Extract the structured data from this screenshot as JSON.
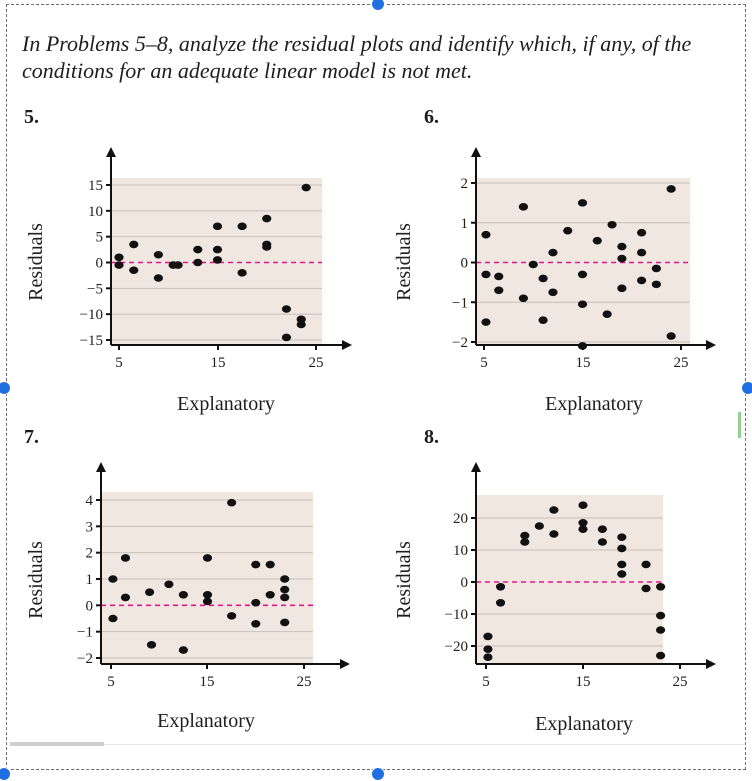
{
  "instruction": "In Problems 5–8, analyze the residual plots and identify which, if any, of the conditions for an adequate linear model is not met.",
  "chart_data": [
    {
      "type": "scatter",
      "label": "5.",
      "xlabel": "Explanatory",
      "ylabel": "Residuals",
      "xlim": [
        5,
        25
      ],
      "ylim": [
        -15,
        15
      ],
      "xticks": [
        "5",
        "15",
        "25"
      ],
      "yticks": [
        "15",
        "10",
        "5",
        "0",
        "−5",
        "−10",
        "−15"
      ],
      "ytick_values": [
        15,
        10,
        5,
        0,
        -5,
        -10,
        -15
      ],
      "zero_line": true,
      "grid": true,
      "points": [
        [
          5,
          1
        ],
        [
          5,
          -0.5
        ],
        [
          6.5,
          3.5
        ],
        [
          6.5,
          -1.5
        ],
        [
          9,
          1.5
        ],
        [
          9,
          -3
        ],
        [
          10.5,
          -0.5
        ],
        [
          11,
          -0.5
        ],
        [
          13,
          2.5
        ],
        [
          13,
          0
        ],
        [
          15,
          7
        ],
        [
          15,
          2.5
        ],
        [
          15,
          0.5
        ],
        [
          17.5,
          7
        ],
        [
          17.5,
          -2
        ],
        [
          20,
          8.5
        ],
        [
          20,
          3.5
        ],
        [
          20,
          3
        ],
        [
          22,
          -9
        ],
        [
          22,
          -14.5
        ],
        [
          23.5,
          -11
        ],
        [
          23.5,
          -12
        ],
        [
          24,
          14.5
        ]
      ]
    },
    {
      "type": "scatter",
      "label": "6.",
      "xlabel": "Explanatory",
      "ylabel": "Residuals",
      "xlim": [
        5,
        25
      ],
      "ylim": [
        -2,
        2
      ],
      "xticks": [
        "5",
        "15",
        "25"
      ],
      "yticks": [
        "2",
        "1",
        "0",
        "−1",
        "−2"
      ],
      "ytick_values": [
        2,
        1,
        0,
        -1,
        -2
      ],
      "zero_line": true,
      "grid": true,
      "points": [
        [
          5.2,
          0.7
        ],
        [
          5.2,
          -0.3
        ],
        [
          5.2,
          -1.5
        ],
        [
          6.5,
          -0.35
        ],
        [
          6.5,
          -0.7
        ],
        [
          9,
          1.4
        ],
        [
          9,
          -0.9
        ],
        [
          10,
          -0.05
        ],
        [
          11,
          -0.4
        ],
        [
          11,
          -1.45
        ],
        [
          12,
          0.25
        ],
        [
          12,
          -0.75
        ],
        [
          13.5,
          0.8
        ],
        [
          15,
          1.5
        ],
        [
          15,
          -0.3
        ],
        [
          15,
          -1.05
        ],
        [
          15,
          -2.1
        ],
        [
          16.5,
          0.55
        ],
        [
          17.5,
          -1.3
        ],
        [
          18,
          0.95
        ],
        [
          19,
          0.4
        ],
        [
          19,
          0.1
        ],
        [
          19,
          -0.65
        ],
        [
          21,
          -0.45
        ],
        [
          21,
          0.75
        ],
        [
          21,
          0.25
        ],
        [
          22.5,
          -0.15
        ],
        [
          22.5,
          -0.55
        ],
        [
          24,
          1.85
        ],
        [
          24,
          -1.85
        ]
      ]
    },
    {
      "type": "scatter",
      "label": "7.",
      "xlabel": "Explanatory",
      "ylabel": "Residuals",
      "xlim": [
        5,
        25
      ],
      "ylim": [
        -2,
        4
      ],
      "xticks": [
        "5",
        "15",
        "25"
      ],
      "yticks": [
        "4",
        "3",
        "2",
        "1",
        "0",
        "−1",
        "−2"
      ],
      "ytick_values": [
        4,
        3,
        2,
        1,
        0,
        -1,
        -2
      ],
      "zero_line": true,
      "grid": true,
      "points": [
        [
          5.2,
          1
        ],
        [
          5.2,
          -0.5
        ],
        [
          6.5,
          1.8
        ],
        [
          6.5,
          0.3
        ],
        [
          9,
          0.5
        ],
        [
          9.2,
          -1.5
        ],
        [
          11,
          0.8
        ],
        [
          12.5,
          0.4
        ],
        [
          12.5,
          -1.7
        ],
        [
          15,
          1.8
        ],
        [
          15,
          0.4
        ],
        [
          15,
          0.15
        ],
        [
          17.5,
          3.9
        ],
        [
          17.5,
          -0.4
        ],
        [
          20,
          1.55
        ],
        [
          20,
          0.1
        ],
        [
          20,
          -0.7
        ],
        [
          21.5,
          1.55
        ],
        [
          21.5,
          0.4
        ],
        [
          23,
          1
        ],
        [
          23,
          0.6
        ],
        [
          23,
          0.3
        ],
        [
          23,
          -0.65
        ]
      ]
    },
    {
      "type": "scatter",
      "label": "8.",
      "xlabel": "Explanatory",
      "ylabel": "Residuals",
      "xlim": [
        5,
        25
      ],
      "ylim": [
        -25,
        25
      ],
      "xticks": [
        "5",
        "15",
        "25"
      ],
      "yticks": [
        "20",
        "10",
        "0",
        "−10",
        "−20"
      ],
      "ytick_values": [
        20,
        10,
        0,
        -10,
        -20
      ],
      "zero_line": true,
      "grid": true,
      "points": [
        [
          5.2,
          -17
        ],
        [
          5.2,
          -21
        ],
        [
          5.2,
          -23.5
        ],
        [
          6.5,
          -1.5
        ],
        [
          6.5,
          -6.5
        ],
        [
          9,
          14.5
        ],
        [
          9,
          12.5
        ],
        [
          10.5,
          17.5
        ],
        [
          12,
          22.5
        ],
        [
          12,
          15
        ],
        [
          15,
          24
        ],
        [
          15,
          18.5
        ],
        [
          15,
          16.5
        ],
        [
          17,
          16.5
        ],
        [
          17,
          12.5
        ],
        [
          19,
          14
        ],
        [
          19,
          10.5
        ],
        [
          19,
          5.5
        ],
        [
          19,
          2.5
        ],
        [
          21.5,
          5.5
        ],
        [
          21.5,
          -2
        ],
        [
          23,
          -1.5
        ],
        [
          23,
          -10.5
        ],
        [
          23,
          -15
        ],
        [
          23,
          -23
        ]
      ]
    }
  ]
}
